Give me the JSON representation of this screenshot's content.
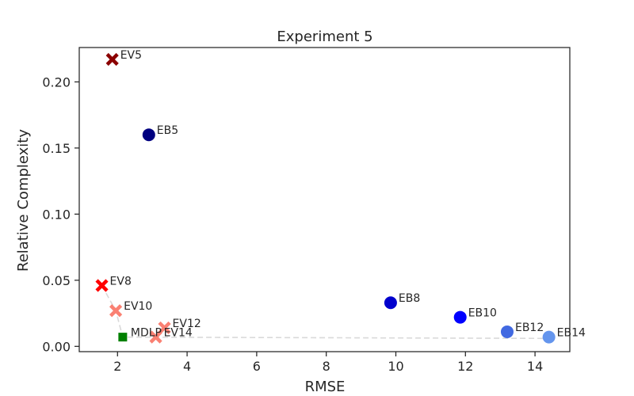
{
  "chart_data": {
    "type": "scatter",
    "title": "Experiment 5",
    "xlabel": "RMSE",
    "ylabel": "Relative Complexity",
    "xlim": [
      0.9,
      15.0
    ],
    "ylim": [
      -0.004,
      0.226
    ],
    "xticks": [
      "2",
      "4",
      "6",
      "8",
      "10",
      "12",
      "14"
    ],
    "xtick_values": [
      2,
      4,
      6,
      8,
      10,
      12,
      14
    ],
    "yticks": [
      "0.00",
      "0.05",
      "0.10",
      "0.15",
      "0.20"
    ],
    "ytick_values": [
      0.0,
      0.05,
      0.1,
      0.15,
      0.2
    ],
    "grid": false,
    "points": [
      {
        "label": "EV5",
        "x": 1.85,
        "y": 0.217,
        "marker": "x",
        "color": "#8b0000"
      },
      {
        "label": "EV8",
        "x": 1.55,
        "y": 0.046,
        "marker": "x",
        "color": "#ff0000"
      },
      {
        "label": "EV10",
        "x": 1.95,
        "y": 0.027,
        "marker": "x",
        "color": "#fa8072"
      },
      {
        "label": "EV12",
        "x": 3.35,
        "y": 0.014,
        "marker": "x",
        "color": "#fa8072"
      },
      {
        "label": "EV14",
        "x": 3.1,
        "y": 0.007,
        "marker": "x",
        "color": "#fa8072"
      },
      {
        "label": "MDLP",
        "x": 2.15,
        "y": 0.007,
        "marker": "square",
        "color": "#008000"
      },
      {
        "label": "EB5",
        "x": 2.9,
        "y": 0.16,
        "marker": "circle",
        "color": "#000080"
      },
      {
        "label": "EB8",
        "x": 9.85,
        "y": 0.033,
        "marker": "circle",
        "color": "#0000cd"
      },
      {
        "label": "EB10",
        "x": 11.85,
        "y": 0.022,
        "marker": "circle",
        "color": "#0000ff"
      },
      {
        "label": "EB12",
        "x": 13.2,
        "y": 0.011,
        "marker": "circle",
        "color": "#4169e1"
      },
      {
        "label": "EB14",
        "x": 14.4,
        "y": 0.007,
        "marker": "circle",
        "color": "#6495ed"
      }
    ],
    "guide_line": [
      {
        "x": 1.55,
        "y": 0.046
      },
      {
        "x": 1.95,
        "y": 0.027
      },
      {
        "x": 2.15,
        "y": 0.007
      },
      {
        "x": 14.4,
        "y": 0.006
      }
    ]
  }
}
